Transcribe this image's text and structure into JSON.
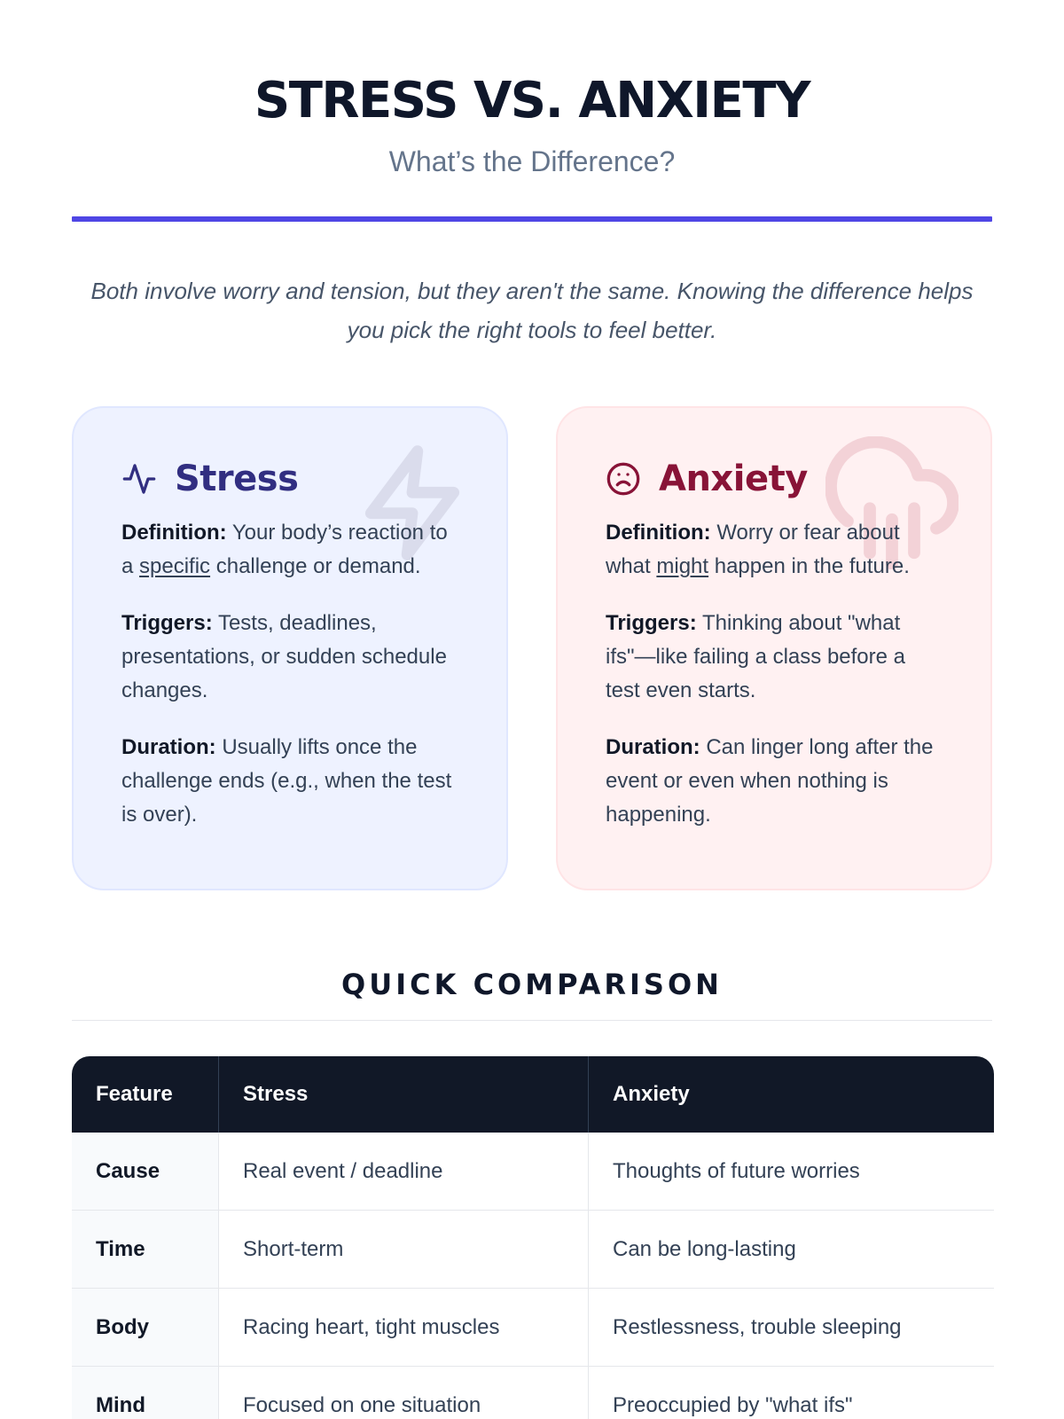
{
  "header": {
    "title": "STRESS VS. ANXIETY",
    "subtitle": "What’s the Difference?"
  },
  "intro": "Both involve worry and tension, but they aren't the same. Knowing the difference helps you pick the right tools to feel better.",
  "colors": {
    "accent": "#4f46e5",
    "stress_title": "#312e81",
    "anxiety_title": "#881337",
    "stress_bg": "#eef2ff",
    "anxiety_bg": "#fff1f2",
    "table_header": "#111827"
  },
  "cards": {
    "stress": {
      "title": "Stress",
      "icon": "pulse-icon",
      "watermark_icon": "lightning-icon",
      "definition_label": "Definition:",
      "definition_pre": "Your body’s reaction to a",
      "definition_em": "specific",
      "definition_post": "challenge or demand.",
      "triggers_label": "Triggers:",
      "triggers_text": "Tests, deadlines, presentations, or sudden schedule changes.",
      "duration_label": "Duration:",
      "duration_text": "Usually lifts once the challenge ends (e.g., when the test is over)."
    },
    "anxiety": {
      "title": "Anxiety",
      "icon": "sad-face-icon",
      "watermark_icon": "rain-cloud-icon",
      "definition_label": "Definition:",
      "definition_pre": "Worry or fear about what",
      "definition_em": "might",
      "definition_post": "happen in the future.",
      "triggers_label": "Triggers:",
      "triggers_text": "Thinking about \"what ifs\"—like failing a class before a test even starts.",
      "duration_label": "Duration:",
      "duration_text": "Can linger long after the event or even when nothing is happening."
    }
  },
  "comparison": {
    "title": "QUICK COMPARISON",
    "headers": [
      "Feature",
      "Stress",
      "Anxiety"
    ],
    "rows": [
      [
        "Cause",
        "Real event / deadline",
        "Thoughts of future worries"
      ],
      [
        "Time",
        "Short-term",
        "Can be long-lasting"
      ],
      [
        "Body",
        "Racing heart, tight muscles",
        "Restlessness, trouble sleeping"
      ],
      [
        "Mind",
        "Focused on one situation",
        "Preoccupied by \"what ifs\""
      ]
    ]
  }
}
